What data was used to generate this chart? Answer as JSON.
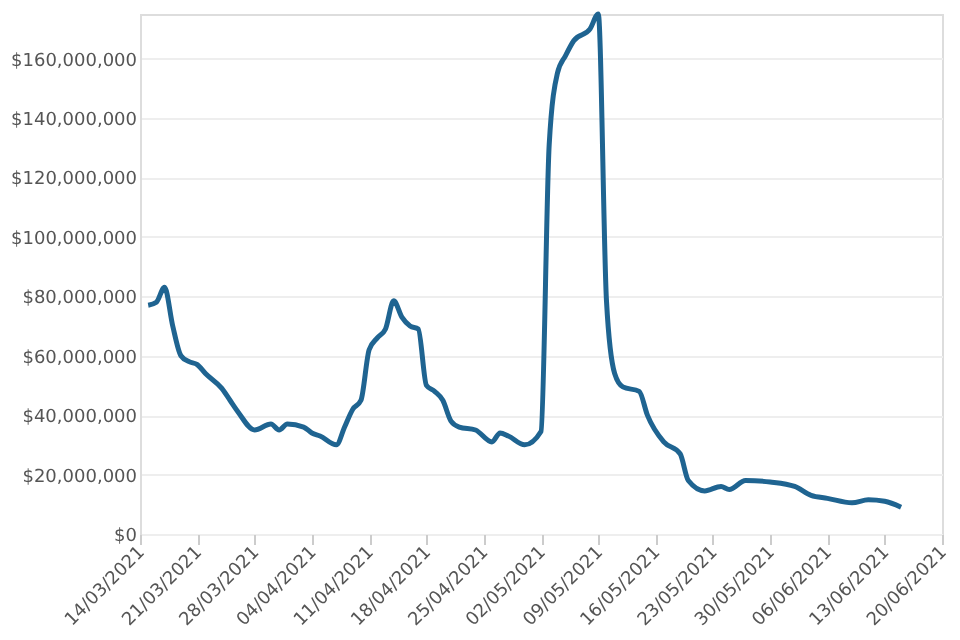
{
  "chart_data": {
    "type": "line",
    "x": [
      "2021-03-15",
      "2021-03-16",
      "2021-03-17",
      "2021-03-18",
      "2021-03-19",
      "2021-03-20",
      "2021-03-21",
      "2021-03-22",
      "2021-03-24",
      "2021-03-25",
      "2021-03-26",
      "2021-03-28",
      "2021-03-30",
      "2021-03-31",
      "2021-04-01",
      "2021-04-03",
      "2021-04-04",
      "2021-04-05",
      "2021-04-07",
      "2021-04-08",
      "2021-04-09",
      "2021-04-10",
      "2021-04-11",
      "2021-04-12",
      "2021-04-13",
      "2021-04-14",
      "2021-04-15",
      "2021-04-16",
      "2021-04-17",
      "2021-04-18",
      "2021-04-19",
      "2021-04-20",
      "2021-04-21",
      "2021-04-22",
      "2021-04-24",
      "2021-04-26",
      "2021-04-27",
      "2021-04-28",
      "2021-04-30",
      "2021-05-02",
      "2021-05-03",
      "2021-05-04",
      "2021-05-05",
      "2021-05-06",
      "2021-05-08",
      "2021-05-09",
      "2021-05-10",
      "2021-05-11",
      "2021-05-12",
      "2021-05-14",
      "2021-05-15",
      "2021-05-17",
      "2021-05-19",
      "2021-05-20",
      "2021-05-22",
      "2021-05-24",
      "2021-05-25",
      "2021-05-27",
      "2021-05-30",
      "2021-06-02",
      "2021-06-04",
      "2021-06-06",
      "2021-06-09",
      "2021-06-11",
      "2021-06-13",
      "2021-06-15"
    ],
    "series": [
      {
        "color": "#1f6491",
        "values": [
          77000000,
          78000000,
          83000000,
          70000000,
          60000000,
          58000000,
          57000000,
          54000000,
          49000000,
          45000000,
          41000000,
          35000000,
          37000000,
          35000000,
          37000000,
          36000000,
          34000000,
          33000000,
          30000000,
          36000000,
          42000000,
          45000000,
          62000000,
          66000000,
          69000000,
          78500000,
          73000000,
          70000000,
          69000000,
          50000000,
          48000000,
          45000000,
          38000000,
          36000000,
          35000000,
          31000000,
          34000000,
          33000000,
          30000000,
          34500000,
          131000000,
          155000000,
          161000000,
          166000000,
          170000000,
          175000000,
          78500000,
          54000000,
          49500000,
          48000000,
          40000000,
          31000000,
          27000000,
          18000000,
          14500000,
          16000000,
          15000000,
          18000000,
          17500000,
          16000000,
          13000000,
          12000000,
          10500000,
          11500000,
          11000000,
          9000000
        ]
      }
    ],
    "xlim": [
      "2021-03-14",
      "2021-06-20"
    ],
    "xticks": [
      {
        "value": "2021-03-14",
        "label": "14/03/2021"
      },
      {
        "value": "2021-03-21",
        "label": "21/03/2021"
      },
      {
        "value": "2021-03-28",
        "label": "28/03/2021"
      },
      {
        "value": "2021-04-04",
        "label": "04/04/2021"
      },
      {
        "value": "2021-04-11",
        "label": "11/04/2021"
      },
      {
        "value": "2021-04-18",
        "label": "18/04/2021"
      },
      {
        "value": "2021-04-25",
        "label": "25/04/2021"
      },
      {
        "value": "2021-05-02",
        "label": "02/05/2021"
      },
      {
        "value": "2021-05-09",
        "label": "09/05/2021"
      },
      {
        "value": "2021-05-16",
        "label": "16/05/2021"
      },
      {
        "value": "2021-05-23",
        "label": "23/05/2021"
      },
      {
        "value": "2021-05-30",
        "label": "30/05/2021"
      },
      {
        "value": "2021-06-06",
        "label": "06/06/2021"
      },
      {
        "value": "2021-06-13",
        "label": "13/06/2021"
      },
      {
        "value": "2021-06-20",
        "label": "20/06/2021"
      }
    ],
    "ylim": [
      0,
      175000000
    ],
    "yticks": [
      {
        "value": 0,
        "label": "$0"
      },
      {
        "value": 20000000,
        "label": "$20,000,000"
      },
      {
        "value": 40000000,
        "label": "$40,000,000"
      },
      {
        "value": 60000000,
        "label": "$60,000,000"
      },
      {
        "value": 80000000,
        "label": "$80,000,000"
      },
      {
        "value": 100000000,
        "label": "$100,000,000"
      },
      {
        "value": 120000000,
        "label": "$120,000,000"
      },
      {
        "value": 140000000,
        "label": "$140,000,000"
      },
      {
        "value": 160000000,
        "label": "$160,000,000"
      }
    ],
    "grid": "y",
    "marker": "none",
    "line_style": "solid",
    "legend": false
  }
}
